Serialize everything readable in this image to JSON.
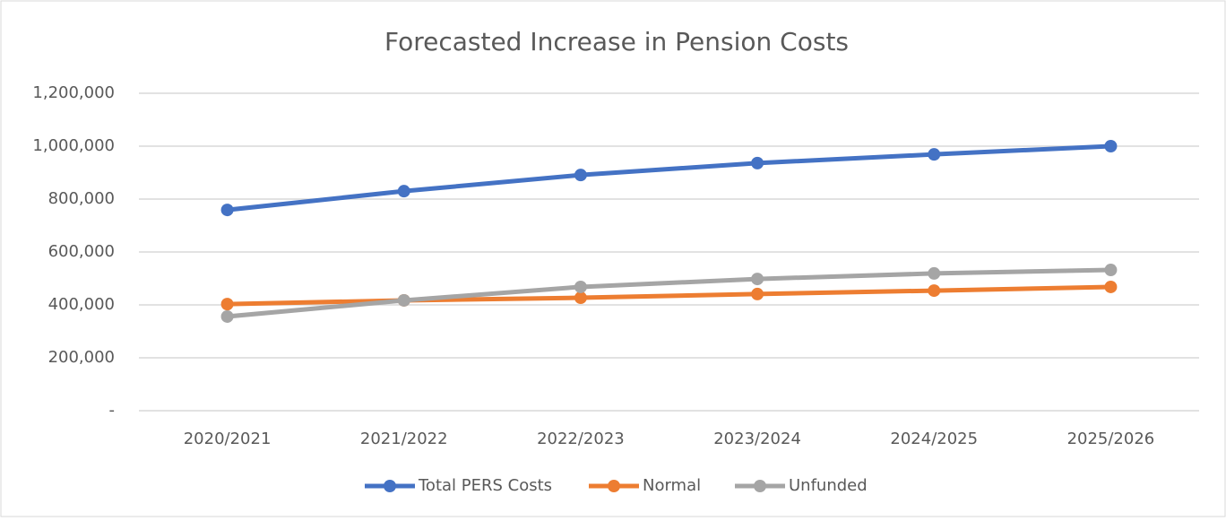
{
  "chart_data": {
    "type": "line",
    "title": "Forecasted Increase in Pension Costs",
    "categories": [
      "2020/2021",
      "2021/2022",
      "2022/2023",
      "2023/2024",
      "2024/2025",
      "2025/2026"
    ],
    "series": [
      {
        "name": "Total PERS Costs",
        "color": "#4472c4",
        "values": [
          759000,
          830000,
          891000,
          936000,
          969000,
          1000000
        ]
      },
      {
        "name": "Normal",
        "color": "#ed7d31",
        "values": [
          403000,
          417000,
          427000,
          441000,
          454000,
          468000
        ]
      },
      {
        "name": "Unfunded",
        "color": "#a5a5a5",
        "values": [
          356000,
          417000,
          468000,
          498000,
          519000,
          532000
        ]
      }
    ],
    "ylim": [
      0,
      1200000
    ],
    "yticks": [
      {
        "value": 0,
        "label": "-"
      },
      {
        "value": 200000,
        "label": "200,000"
      },
      {
        "value": 400000,
        "label": "400,000"
      },
      {
        "value": 600000,
        "label": "600,000"
      },
      {
        "value": 800000,
        "label": "800,000"
      },
      {
        "value": 1000000,
        "label": "1,000,000"
      },
      {
        "value": 1200000,
        "label": "1,200,000"
      }
    ],
    "grid": true,
    "legend": "bottom"
  }
}
